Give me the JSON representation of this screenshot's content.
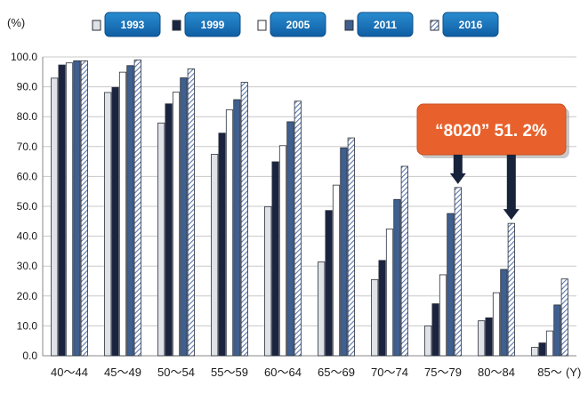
{
  "chart_data": {
    "type": "bar",
    "title": "",
    "y_unit_label": "(%)",
    "x_unit_label": "(Y)",
    "ylim": [
      0,
      100
    ],
    "yticks": [
      "100.0",
      "90.0",
      "80.0",
      "70.0",
      "60.0",
      "50.0",
      "40.0",
      "30.0",
      "20.0",
      "10.0",
      "0.0"
    ],
    "grid": true,
    "legend_position": "top",
    "categories": [
      "40～44",
      "45～49",
      "50～54",
      "55～59",
      "60～64",
      "65～69",
      "70～74",
      "75～79",
      "80～84",
      "85～"
    ],
    "series": [
      {
        "name": "1993",
        "color": "#dfe3e8",
        "values": [
          92.9,
          88.1,
          77.9,
          67.4,
          49.9,
          31.4,
          25.5,
          10.0,
          11.7,
          2.8
        ]
      },
      {
        "name": "1999",
        "color": "#1a2440",
        "values": [
          97.3,
          89.8,
          84.3,
          74.5,
          64.9,
          48.6,
          31.9,
          17.4,
          12.7,
          4.3
        ]
      },
      {
        "name": "2005",
        "color": "#ffffff",
        "values": [
          98.0,
          94.9,
          88.2,
          82.3,
          70.3,
          57.1,
          42.4,
          27.1,
          21.1,
          8.3
        ]
      },
      {
        "name": "2011",
        "color": "#3f5f8f",
        "values": [
          98.7,
          97.1,
          93.0,
          85.7,
          78.3,
          69.6,
          52.3,
          47.6,
          28.9,
          17.0
        ]
      },
      {
        "name": "2016",
        "color": "#b8c8e6",
        "pattern": "diagonal-hatch",
        "values": [
          98.7,
          99.0,
          96.0,
          91.5,
          85.2,
          72.9,
          63.4,
          56.3,
          44.3,
          25.7
        ]
      }
    ],
    "annotation": {
      "text": "“8020” 51. 2%",
      "color": "#e8612c",
      "arrow_color": "#17223b",
      "points_to_categories": [
        "75～79",
        "80～84"
      ],
      "points_to_series": "2016"
    }
  }
}
